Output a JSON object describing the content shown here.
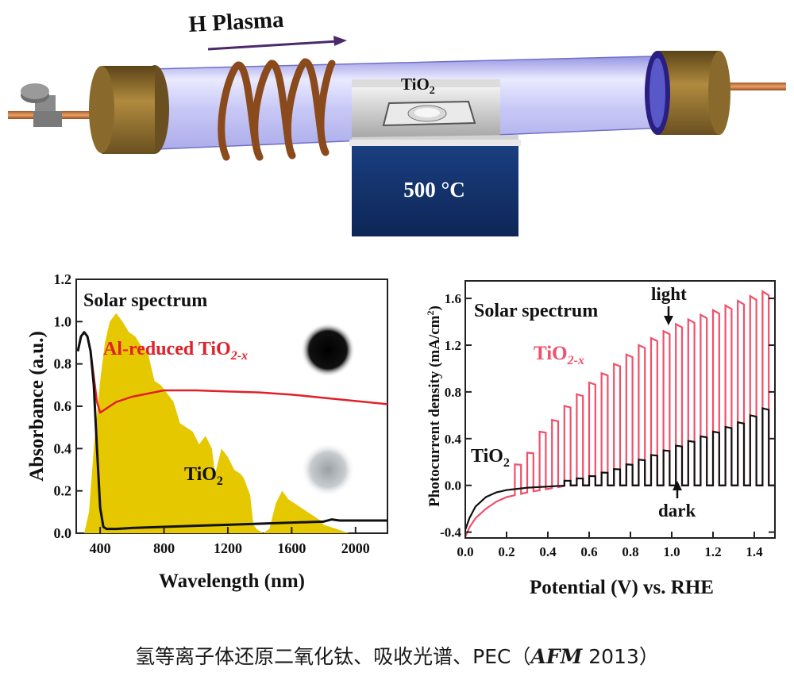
{
  "apparatus": {
    "arrow_label": "H Plasma",
    "sample_label": "TiO",
    "sample_subscript": "2",
    "heater_label": "500 °C"
  },
  "chart_data": [
    {
      "type": "line",
      "xlabel": "Wavelength (nm)",
      "ylabel": "Absorbance (a.u.)",
      "xlim": [
        250,
        2200
      ],
      "ylim": [
        0.0,
        1.2
      ],
      "xticks": [
        "400",
        "800",
        "1200",
        "1600",
        "2000"
      ],
      "xtick_values": [
        400,
        800,
        1200,
        1600,
        2000
      ],
      "yticks": [
        "0.0",
        "0.2",
        "0.4",
        "0.6",
        "0.8",
        "1.0",
        "1.2"
      ],
      "ytick_values": [
        0.0,
        0.2,
        0.4,
        0.6,
        0.8,
        1.0,
        1.2
      ],
      "annotations": {
        "solar": "Solar spectrum",
        "al_main": "Al-reduced TiO",
        "al_sub": "2-x",
        "tio2_main": "TiO",
        "tio2_sub": "2"
      },
      "colors": {
        "solar": "#e6c800",
        "al_reduced": "#e0202a",
        "tio2": "#111111"
      },
      "solar_spectrum": {
        "x": [
          300,
          330,
          360,
          400,
          430,
          460,
          500,
          540,
          580,
          620,
          660,
          700,
          740,
          780,
          820,
          860,
          900,
          940,
          980,
          1020,
          1060,
          1100,
          1120,
          1140,
          1160,
          1200,
          1240,
          1280,
          1300,
          1320,
          1340,
          1360,
          1380,
          1420,
          1460,
          1500,
          1540,
          1580,
          1620,
          1660,
          1700,
          1740,
          1780,
          1800,
          1840,
          1880,
          1920,
          1960,
          2000,
          2040,
          2080,
          2120,
          2160,
          2200
        ],
        "y": [
          0.0,
          0.1,
          0.4,
          0.72,
          0.9,
          1.0,
          1.04,
          1.0,
          0.95,
          0.93,
          0.88,
          0.85,
          0.72,
          0.7,
          0.66,
          0.62,
          0.52,
          0.5,
          0.48,
          0.42,
          0.46,
          0.4,
          0.28,
          0.34,
          0.4,
          0.36,
          0.3,
          0.28,
          0.26,
          0.22,
          0.18,
          0.04,
          0.02,
          0.0,
          0.02,
          0.14,
          0.2,
          0.16,
          0.14,
          0.12,
          0.1,
          0.08,
          0.06,
          0.04,
          0.03,
          0.02,
          0.01,
          0.0,
          0.0,
          0.0,
          0.0,
          0.0,
          0.0,
          0.0
        ]
      },
      "series": [
        {
          "key": "al_reduced",
          "x": [
            260,
            280,
            300,
            320,
            340,
            360,
            380,
            400,
            440,
            500,
            600,
            700,
            800,
            900,
            1000,
            1200,
            1400,
            1600,
            1800,
            2000,
            2200
          ],
          "y": [
            0.86,
            0.93,
            0.95,
            0.93,
            0.86,
            0.74,
            0.62,
            0.57,
            0.59,
            0.62,
            0.645,
            0.66,
            0.675,
            0.675,
            0.675,
            0.67,
            0.665,
            0.655,
            0.64,
            0.625,
            0.61
          ]
        },
        {
          "key": "tio2",
          "x": [
            260,
            280,
            300,
            320,
            340,
            360,
            380,
            400,
            420,
            440,
            460,
            500,
            600,
            800,
            1000,
            1200,
            1400,
            1600,
            1800,
            1850,
            1900,
            2000,
            2200
          ],
          "y": [
            0.86,
            0.93,
            0.95,
            0.93,
            0.86,
            0.7,
            0.4,
            0.12,
            0.03,
            0.02,
            0.02,
            0.02,
            0.025,
            0.03,
            0.035,
            0.04,
            0.045,
            0.05,
            0.055,
            0.065,
            0.06,
            0.06,
            0.06
          ]
        }
      ]
    },
    {
      "type": "line",
      "xlabel": "Potential (V) vs. RHE",
      "ylabel": "Photocurrent density (mA/cm",
      "ylabel_sup": "2",
      "ylabel_close": ")",
      "xlim": [
        0.0,
        1.5
      ],
      "ylim": [
        -0.45,
        1.75
      ],
      "xticks": [
        "0.0",
        "0.2",
        "0.4",
        "0.6",
        "0.8",
        "1.0",
        "1.2",
        "1.4"
      ],
      "xtick_values": [
        0.0,
        0.2,
        0.4,
        0.6,
        0.8,
        1.0,
        1.2,
        1.4
      ],
      "yticks": [
        "-0.4",
        "0.0",
        "0.4",
        "0.8",
        "1.2",
        "1.6"
      ],
      "ytick_values": [
        -0.4,
        0.0,
        0.4,
        0.8,
        1.2,
        1.6
      ],
      "annotations": {
        "solar": "Solar spectrum",
        "tio2x_main": "TiO",
        "tio2x_sub": "2-x",
        "tio2_main": "TiO",
        "tio2_sub": "2",
        "light": "light",
        "dark": "dark"
      },
      "colors": {
        "tio2x": "#f0506a",
        "tio2": "#111111"
      },
      "chopped": {
        "tio2x": {
          "onsets": [
            0.24,
            0.3,
            0.36,
            0.42,
            0.48,
            0.54,
            0.6,
            0.66,
            0.72,
            0.78,
            0.84,
            0.9,
            0.96,
            1.02,
            1.08,
            1.14,
            1.2,
            1.26,
            1.32,
            1.38,
            1.44
          ],
          "light": [
            0.18,
            0.28,
            0.46,
            0.56,
            0.68,
            0.78,
            0.88,
            0.96,
            1.04,
            1.12,
            1.2,
            1.26,
            1.32,
            1.38,
            1.42,
            1.46,
            1.5,
            1.54,
            1.58,
            1.62,
            1.66
          ]
        },
        "tio2": {
          "onsets": [
            0.48,
            0.54,
            0.6,
            0.66,
            0.72,
            0.78,
            0.84,
            0.9,
            0.96,
            1.02,
            1.08,
            1.14,
            1.2,
            1.26,
            1.32,
            1.38,
            1.44
          ],
          "light": [
            0.04,
            0.06,
            0.08,
            0.11,
            0.14,
            0.18,
            0.22,
            0.26,
            0.3,
            0.34,
            0.38,
            0.42,
            0.46,
            0.5,
            0.54,
            0.6,
            0.66
          ]
        }
      },
      "dark_current": {
        "x": [
          0.0,
          0.02,
          0.05,
          0.1,
          0.15,
          0.2,
          0.3,
          0.4,
          0.5,
          1.5
        ],
        "y_tio2": [
          -0.38,
          -0.28,
          -0.18,
          -0.1,
          -0.06,
          -0.04,
          -0.02,
          -0.01,
          0.0,
          0.0
        ],
        "y_tio2x": [
          -0.44,
          -0.36,
          -0.28,
          -0.2,
          -0.14,
          -0.1,
          -0.06,
          -0.03,
          0.0,
          0.0
        ]
      }
    }
  ],
  "caption": {
    "text": "氢等离子体还原二氧化钛、吸收光谱、PEC（",
    "journal": "AFM",
    "year": " 2013）"
  }
}
